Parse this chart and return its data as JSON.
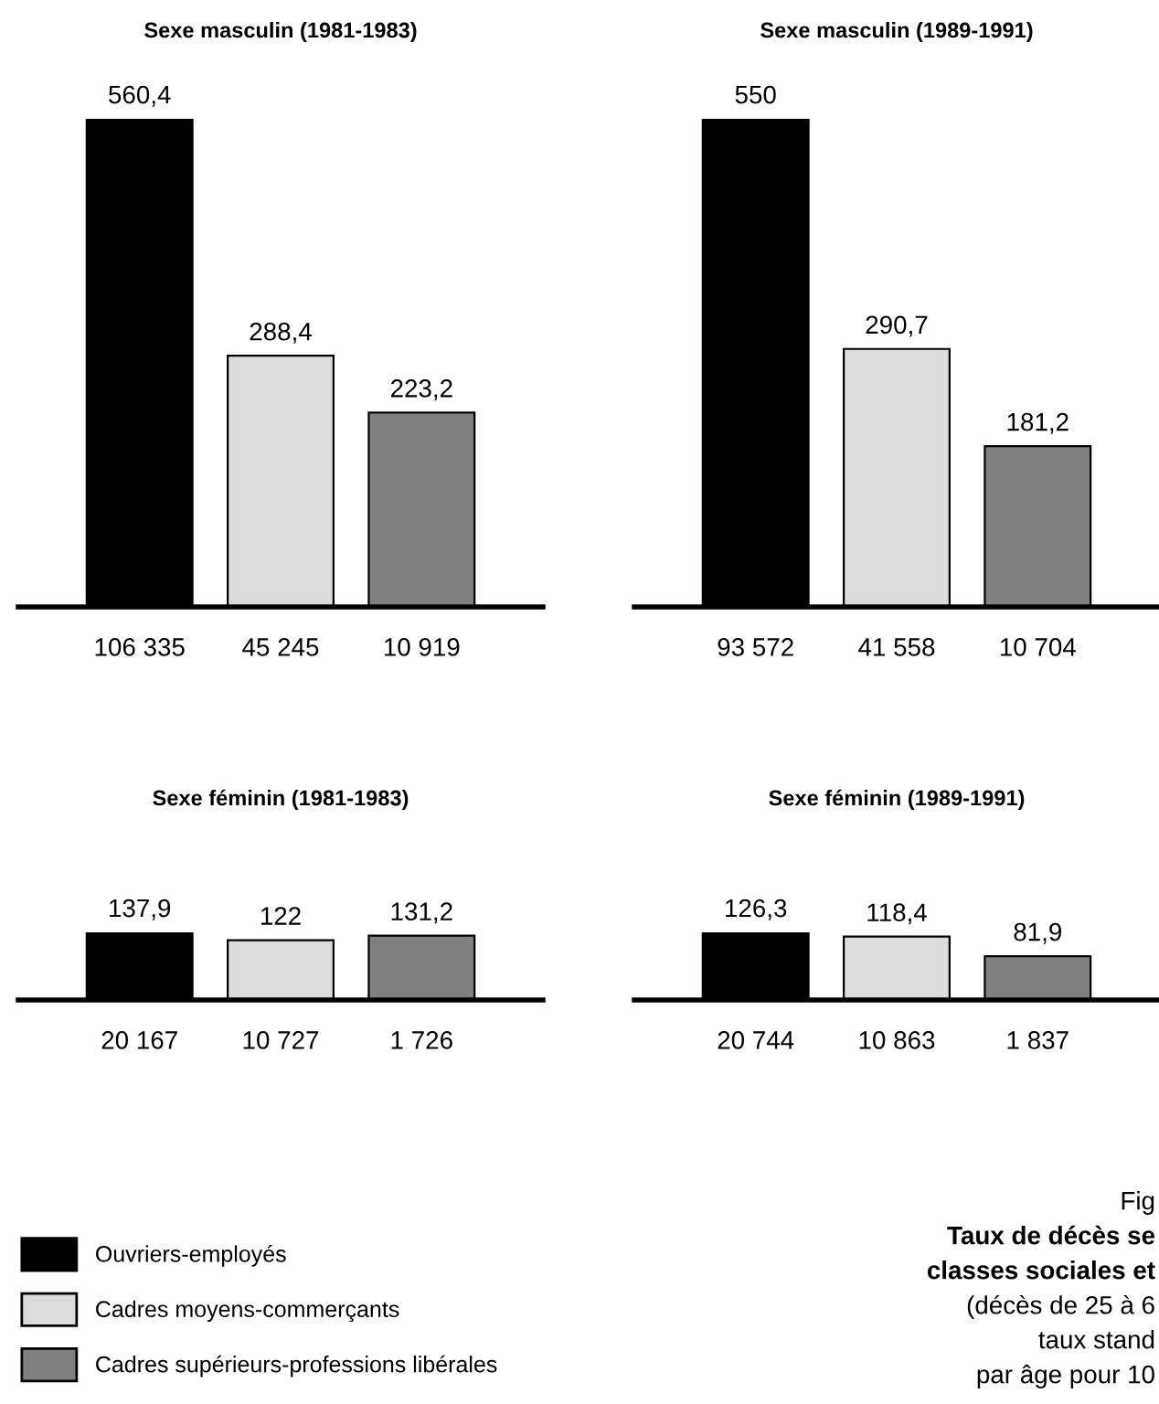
{
  "chart_data": [
    {
      "type": "bar",
      "title": "Sexe masculin (1981-1983)",
      "categories": [
        "106 335",
        "45 245",
        "10 919"
      ],
      "series": [
        {
          "color": "#000000",
          "values": [
            560.4,
            null,
            null
          ],
          "value_labels": [
            "560,4",
            null,
            null
          ]
        },
        {
          "color": "#dcdcdc",
          "values": [
            null,
            288.4,
            null
          ],
          "value_labels": [
            null,
            "288,4",
            null
          ]
        },
        {
          "color": "#808080",
          "values": [
            null,
            null,
            223.2
          ],
          "value_labels": [
            null,
            null,
            "223,2"
          ]
        }
      ]
    },
    {
      "type": "bar",
      "title": "Sexe masculin (1989-1991)",
      "categories": [
        "93 572",
        "41 558",
        "10 704"
      ],
      "series": [
        {
          "color": "#000000",
          "values": [
            550,
            null,
            null
          ],
          "value_labels": [
            "550",
            null,
            null
          ]
        },
        {
          "color": "#dcdcdc",
          "values": [
            null,
            290.7,
            null
          ],
          "value_labels": [
            null,
            "290,7",
            null
          ]
        },
        {
          "color": "#808080",
          "values": [
            null,
            null,
            181.2
          ],
          "value_labels": [
            null,
            null,
            "181,2"
          ]
        }
      ]
    },
    {
      "type": "bar",
      "title": "Sexe féminin (1981-1983)",
      "categories": [
        "20 167",
        "10 727",
        "1 726"
      ],
      "legend": "bottom left",
      "series": [
        {
          "name": "Ouvriers-employés",
          "color": "#000000",
          "values": [
            137.9,
            null,
            null
          ],
          "value_labels": [
            "137,9",
            null,
            null
          ]
        },
        {
          "name": "Cadres moyens-commerçants",
          "color": "#dcdcdc",
          "values": [
            null,
            122,
            null
          ],
          "value_labels": [
            null,
            "122",
            null
          ]
        },
        {
          "name": "Cadres supérieurs-professions libérales",
          "color": "#808080",
          "values": [
            null,
            null,
            131.2
          ],
          "value_labels": [
            null,
            null,
            "131,2"
          ]
        }
      ]
    },
    {
      "type": "bar",
      "title": "Sexe féminin (1989-1991)",
      "categories": [
        "20 744",
        "10 863",
        "1 837"
      ],
      "series": [
        {
          "color": "#000000",
          "values": [
            126.3,
            null,
            null
          ],
          "value_labels": [
            "126,3",
            null,
            null
          ]
        },
        {
          "color": "#dcdcdc",
          "values": [
            null,
            118.4,
            null
          ],
          "value_labels": [
            null,
            "118,4",
            null
          ]
        },
        {
          "color": "#808080",
          "values": [
            null,
            null,
            81.9
          ],
          "value_labels": [
            null,
            null,
            "81,9"
          ]
        }
      ],
      "annotations": [
        "Fig",
        "Taux de décès se",
        "classes sociales et",
        "(décès de 25 à 6",
        "taux stand",
        "par âge pour 10"
      ]
    }
  ]
}
